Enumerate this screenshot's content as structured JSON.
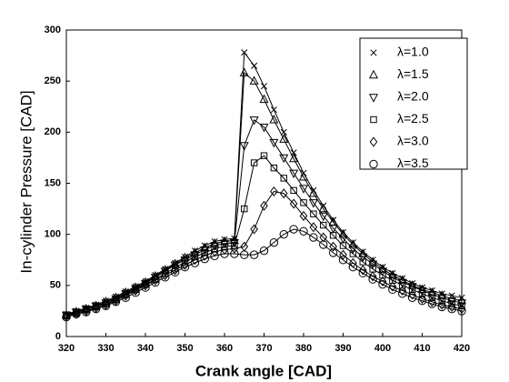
{
  "chart_data": {
    "type": "line",
    "xlabel": "Crank angle [CAD]",
    "ylabel": "In-cylinder Pressure [CAD]",
    "x": [
      320,
      322.5,
      325,
      327.5,
      330,
      332.5,
      335,
      337.5,
      340,
      342.5,
      345,
      347.5,
      350,
      352.5,
      355,
      357.5,
      360,
      362.5,
      365,
      367.5,
      370,
      372.5,
      375,
      377.5,
      380,
      382.5,
      385,
      387.5,
      390,
      392.5,
      395,
      397.5,
      400,
      402.5,
      405,
      407.5,
      410,
      412.5,
      415,
      417.5,
      420
    ],
    "xlim": [
      320,
      420
    ],
    "xticks": [
      320,
      330,
      340,
      350,
      360,
      370,
      380,
      390,
      400,
      410,
      420
    ],
    "ylim": [
      0,
      300
    ],
    "yticks": [
      0,
      50,
      100,
      150,
      200,
      250,
      300
    ],
    "legend": "upper right",
    "series": [
      {
        "name": "λ=1.0",
        "color": "#000000",
        "marker": "x",
        "values": [
          22,
          25,
          28,
          31,
          35,
          39,
          44,
          49,
          54,
          60,
          66,
          72,
          78,
          84,
          89,
          93,
          95,
          96,
          278,
          265,
          245,
          222,
          200,
          180,
          160,
          143,
          128,
          114,
          102,
          92,
          83,
          75,
          68,
          62,
          57,
          52,
          48,
          45,
          42,
          40,
          38
        ]
      },
      {
        "name": "λ=1.5",
        "color": "#000000",
        "marker": "triangle-up",
        "values": [
          21,
          24,
          27,
          30,
          34,
          38,
          43,
          48,
          53,
          59,
          65,
          71,
          77,
          82,
          87,
          91,
          93,
          94,
          258,
          250,
          232,
          212,
          193,
          174,
          156,
          140,
          125,
          112,
          100,
          90,
          81,
          73,
          66,
          60,
          55,
          50,
          46,
          43,
          40,
          37,
          35
        ]
      },
      {
        "name": "λ=2.0",
        "color": "#000000",
        "marker": "triangle-down",
        "values": [
          21,
          24,
          27,
          30,
          33,
          37,
          42,
          47,
          52,
          58,
          64,
          70,
          75,
          80,
          85,
          89,
          91,
          92,
          187,
          212,
          205,
          190,
          175,
          160,
          145,
          131,
          118,
          106,
          96,
          86,
          78,
          71,
          64,
          58,
          53,
          49,
          45,
          41,
          38,
          35,
          33
        ]
      },
      {
        "name": "λ=2.5",
        "color": "#000000",
        "marker": "square",
        "values": [
          20,
          23,
          26,
          29,
          32,
          36,
          41,
          46,
          51,
          56,
          62,
          67,
          73,
          78,
          82,
          86,
          88,
          89,
          125,
          170,
          177,
          165,
          155,
          143,
          131,
          120,
          109,
          99,
          89,
          81,
          73,
          66,
          60,
          55,
          50,
          46,
          42,
          38,
          35,
          32,
          30
        ]
      },
      {
        "name": "λ=3.0",
        "color": "#000000",
        "marker": "diamond",
        "values": [
          20,
          22,
          25,
          28,
          31,
          35,
          40,
          45,
          50,
          55,
          60,
          65,
          70,
          75,
          79,
          83,
          85,
          86,
          88,
          105,
          128,
          142,
          140,
          130,
          118,
          107,
          97,
          88,
          80,
          72,
          65,
          59,
          54,
          49,
          45,
          41,
          37,
          34,
          31,
          29,
          27
        ]
      },
      {
        "name": "λ=3.5",
        "color": "#000000",
        "marker": "circle",
        "values": [
          19,
          22,
          24,
          27,
          30,
          34,
          38,
          43,
          48,
          53,
          58,
          63,
          68,
          72,
          76,
          79,
          81,
          81,
          80,
          80,
          84,
          92,
          100,
          105,
          103,
          97,
          90,
          82,
          75,
          68,
          62,
          56,
          51,
          46,
          42,
          38,
          35,
          32,
          29,
          27,
          25
        ]
      }
    ]
  }
}
